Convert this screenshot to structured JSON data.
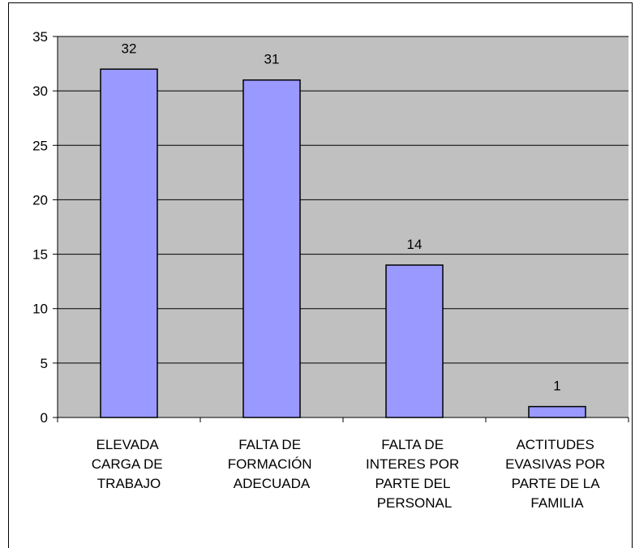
{
  "chart_data": {
    "type": "bar",
    "categories": [
      "ELEVADA CARGA DE TRABAJO",
      "FALTA DE FORMACIÓN ADECUADA",
      "FALTA DE INTERES POR PARTE DEL PERSONAL",
      "ACTITUDES EVASIVAS POR PARTE DE LA FAMILIA"
    ],
    "values": [
      32,
      31,
      14,
      1
    ],
    "color": "#9999ff",
    "ylim": [
      0,
      35
    ],
    "yticks": [
      0,
      5,
      10,
      15,
      20,
      25,
      30,
      35
    ],
    "grid": true
  }
}
